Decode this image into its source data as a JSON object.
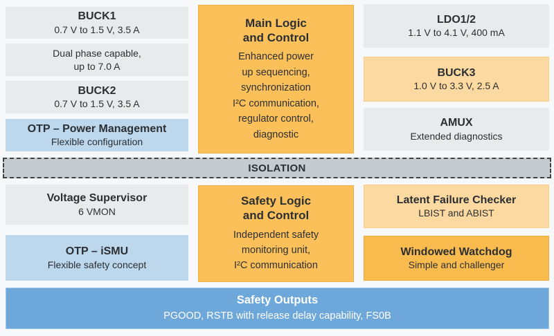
{
  "colors": {
    "background": "#f7f8f9",
    "gray_block": "#e8eaec",
    "blue_block": "#bdd7ec",
    "orange_block": "#fbc05a",
    "light_orange_block": "#fcd9a0",
    "deep_orange_block": "#fabb4e",
    "isolation_fill": "#c6cbcf",
    "safety_outputs_blue": "#6ea7d9",
    "text": "#2b2f33",
    "text_inverse": "#ffffff"
  },
  "blocks": {
    "buck1": {
      "title": "BUCK1",
      "subtitle": "0.7 V to 1.5 V, 3.5 A"
    },
    "dual_phase": {
      "line1": "Dual phase capable,",
      "line2": "up to 7.0 A"
    },
    "buck2": {
      "title": "BUCK2",
      "subtitle": "0.7 V to 1.5 V, 3.5 A"
    },
    "otp_power": {
      "title": "OTP – Power Management",
      "subtitle": "Flexible configuration"
    },
    "main_logic": {
      "title_line1": "Main Logic",
      "title_line2": "and Control",
      "body": [
        "Enhanced power",
        "up sequencing,",
        "synchronization",
        "I²C communication,",
        "regulator control,",
        "diagnostic"
      ]
    },
    "ldo12": {
      "title": "LDO1/2",
      "subtitle": "1.1 V to 4.1 V, 400 mA"
    },
    "buck3": {
      "title": "BUCK3",
      "subtitle": "1.0 V to 3.3 V, 2.5 A"
    },
    "amux": {
      "title": "AMUX",
      "subtitle": "Extended diagnostics"
    },
    "isolation": {
      "label": "ISOLATION"
    },
    "voltage_supervisor": {
      "title": "Voltage Supervisor",
      "subtitle": "6 VMON"
    },
    "otp_ismu": {
      "title": "OTP – iSMU",
      "subtitle": "Flexible safety concept"
    },
    "safety_logic": {
      "title_line1": "Safety Logic",
      "title_line2": "and Control",
      "body": [
        "Independent safety",
        "monitoring unit,",
        "I²C communication"
      ]
    },
    "latent_failure_checker": {
      "title": "Latent Failure Checker",
      "subtitle": "LBIST and ABIST"
    },
    "windowed_watchdog": {
      "title": "Windowed Watchdog",
      "subtitle": "Simple and challenger"
    },
    "safety_outputs": {
      "title": "Safety Outputs",
      "subtitle": "PGOOD, RSTB with release delay capability, FS0B"
    }
  }
}
